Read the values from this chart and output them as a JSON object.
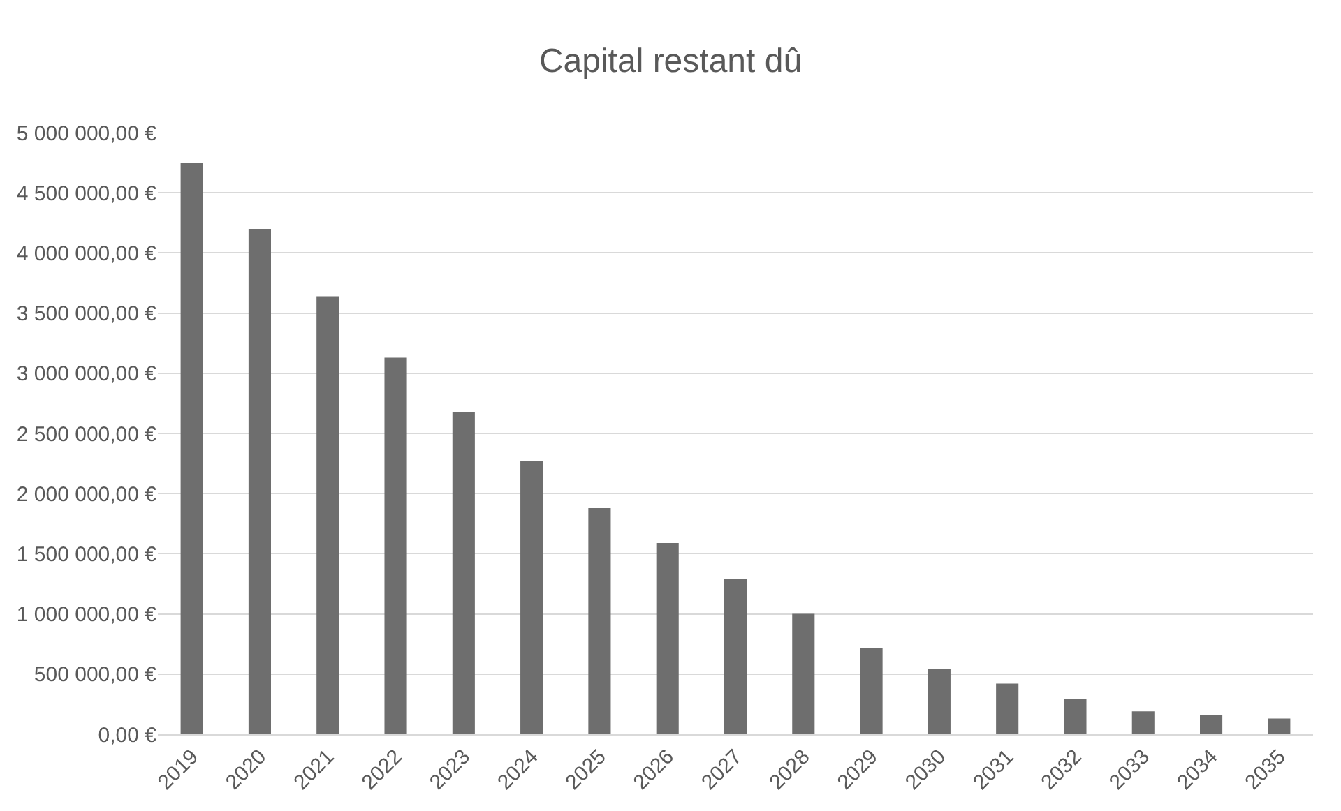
{
  "chart_data": {
    "type": "bar",
    "title": "Capital restant dû",
    "categories": [
      "2019",
      "2020",
      "2021",
      "2022",
      "2023",
      "2024",
      "2025",
      "2026",
      "2027",
      "2028",
      "2029",
      "2030",
      "2031",
      "2032",
      "2033",
      "2034",
      "2035"
    ],
    "values": [
      4750000,
      4200000,
      3640000,
      3130000,
      2680000,
      2270000,
      1880000,
      1590000,
      1290000,
      1000000,
      720000,
      540000,
      420000,
      290000,
      190000,
      160000,
      130000
    ],
    "color": "#6e6e6e",
    "ylim": [
      0,
      5000000
    ],
    "yticks": [
      {
        "value": 0,
        "label": "0,00 €"
      },
      {
        "value": 500000,
        "label": "500 000,00 €"
      },
      {
        "value": 1000000,
        "label": "1 000 000,00 €"
      },
      {
        "value": 1500000,
        "label": "1 500 000,00 €"
      },
      {
        "value": 2000000,
        "label": "2 000 000,00 €"
      },
      {
        "value": 2500000,
        "label": "2 500 000,00 €"
      },
      {
        "value": 3000000,
        "label": "3 000 000,00 €"
      },
      {
        "value": 3500000,
        "label": "3 500 000,00 €"
      },
      {
        "value": 4000000,
        "label": "4 000 000,00 €"
      },
      {
        "value": 4500000,
        "label": "4 500 000,00 €"
      },
      {
        "value": 5000000,
        "label": "5 000 000,00 €"
      }
    ],
    "grid": "y"
  }
}
